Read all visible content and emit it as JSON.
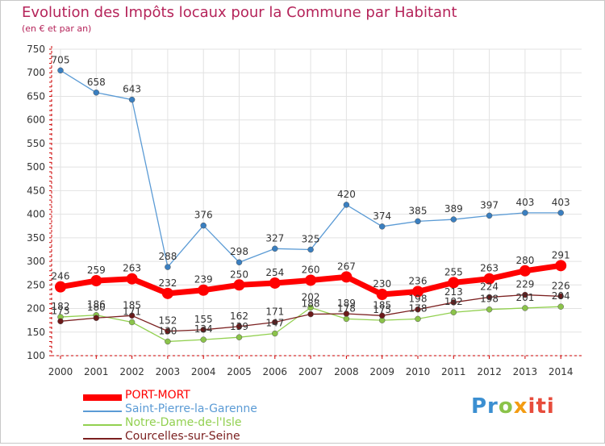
{
  "header": {
    "title": "Evolution des Impôts locaux pour la Commune par Habitant",
    "subtitle": "(en € et par an)"
  },
  "colors": {
    "title": "#b5245a",
    "axis": "#cc0000",
    "label": "#333333"
  },
  "logo": {
    "text": "Proxiti",
    "parts": [
      "Pr",
      "o",
      "x",
      "iti"
    ]
  },
  "chart_data": {
    "type": "line",
    "title": "Evolution des Impôts locaux pour la Commune par Habitant",
    "subtitle": "(en € et par an)",
    "xlabel": "",
    "ylabel": "",
    "ylim": [
      100,
      750
    ],
    "yticks": [
      100,
      150,
      200,
      250,
      300,
      350,
      400,
      450,
      500,
      550,
      600,
      650,
      700,
      750
    ],
    "grid": true,
    "legend_position": "bottom-left",
    "categories": [
      "2000",
      "2001",
      "2002",
      "2003",
      "2004",
      "2005",
      "2006",
      "2007",
      "2008",
      "2009",
      "2010",
      "2011",
      "2012",
      "2013",
      "2014"
    ],
    "series": [
      {
        "name": "PORT-MORT",
        "color": "#ff0000",
        "width": "thick",
        "values": [
          246,
          259,
          263,
          232,
          239,
          250,
          254,
          260,
          267,
          230,
          236,
          255,
          263,
          280,
          291
        ]
      },
      {
        "name": "Saint-Pierre-la-Garenne",
        "color": "#5b9bd5",
        "width": "thin",
        "values": [
          705,
          658,
          643,
          288,
          376,
          298,
          327,
          325,
          420,
          374,
          385,
          389,
          397,
          403,
          403
        ]
      },
      {
        "name": "Notre-Dame-de-l'Isle",
        "color": "#92d050",
        "width": "thin",
        "values": [
          182,
          186,
          171,
          130,
          134,
          139,
          147,
          202,
          178,
          175,
          178,
          192,
          198,
          201,
          204
        ]
      },
      {
        "name": "Courcelles-sur-Seine",
        "color": "#7b2020",
        "width": "thin",
        "values": [
          173,
          180,
          185,
          152,
          155,
          162,
          171,
          188,
          189,
          185,
          198,
          213,
          224,
          229,
          226
        ]
      }
    ]
  }
}
